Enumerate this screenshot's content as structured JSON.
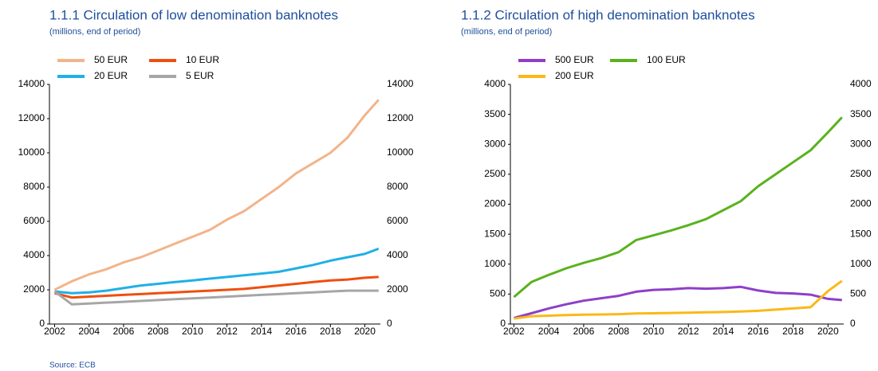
{
  "chart_data": [
    {
      "type": "line",
      "title": "1.1.1 Circulation of low denomination banknotes",
      "subtitle": "(millions, end of period)",
      "x": [
        2002,
        2003,
        2004,
        2005,
        2006,
        2007,
        2008,
        2009,
        2010,
        2011,
        2012,
        2013,
        2014,
        2015,
        2016,
        2017,
        2018,
        2019,
        2020,
        2020.8
      ],
      "xlim": [
        2001.7,
        2020.9
      ],
      "xticks": [
        2002,
        2004,
        2006,
        2008,
        2010,
        2012,
        2014,
        2016,
        2018,
        2020
      ],
      "ylim": [
        0,
        14000
      ],
      "yticks": [
        0,
        2000,
        4000,
        6000,
        8000,
        10000,
        12000,
        14000
      ],
      "y2lim": [
        0,
        14000
      ],
      "y2ticks": [
        0,
        2000,
        4000,
        6000,
        8000,
        10000,
        12000,
        14000
      ],
      "series": [
        {
          "name": "50 EUR",
          "color": "#f2b48a",
          "values": [
            2000,
            2500,
            2900,
            3200,
            3600,
            3900,
            4300,
            4700,
            5100,
            5500,
            6100,
            6600,
            7300,
            8000,
            8800,
            9400,
            10000,
            10900,
            12200,
            13100
          ]
        },
        {
          "name": "10 EUR",
          "color": "#f04e0f",
          "values": [
            1800,
            1550,
            1600,
            1650,
            1700,
            1750,
            1800,
            1850,
            1900,
            1950,
            2000,
            2050,
            2150,
            2250,
            2350,
            2450,
            2550,
            2600,
            2700,
            2750
          ]
        },
        {
          "name": "20 EUR",
          "color": "#1fb0e6",
          "values": [
            1900,
            1800,
            1850,
            1950,
            2100,
            2250,
            2350,
            2450,
            2550,
            2650,
            2750,
            2850,
            2950,
            3050,
            3250,
            3450,
            3700,
            3900,
            4100,
            4400
          ]
        },
        {
          "name": "5 EUR",
          "color": "#a6a6a6",
          "values": [
            1900,
            1150,
            1200,
            1250,
            1300,
            1350,
            1400,
            1450,
            1500,
            1550,
            1600,
            1650,
            1700,
            1750,
            1800,
            1850,
            1900,
            1950,
            1950,
            1950
          ]
        }
      ]
    },
    {
      "type": "line",
      "title": "1.1.2 Circulation of high denomination banknotes",
      "subtitle": "(millions, end of period)",
      "x": [
        2002,
        2003,
        2004,
        2005,
        2006,
        2007,
        2008,
        2009,
        2010,
        2011,
        2012,
        2013,
        2014,
        2015,
        2016,
        2017,
        2018,
        2019,
        2020,
        2020.8
      ],
      "xlim": [
        2001.8,
        2020.9
      ],
      "xticks": [
        2002,
        2004,
        2006,
        2008,
        2010,
        2012,
        2014,
        2016,
        2018,
        2020
      ],
      "ylim": [
        0,
        4000
      ],
      "yticks": [
        0,
        500,
        1000,
        1500,
        2000,
        2500,
        3000,
        3500,
        4000
      ],
      "y2lim": [
        0,
        4000
      ],
      "y2ticks": [
        0,
        500,
        1000,
        1500,
        2000,
        2500,
        3000,
        3500,
        4000
      ],
      "series": [
        {
          "name": "500 EUR",
          "color": "#8e3fc9",
          "values": [
            100,
            180,
            260,
            330,
            390,
            430,
            470,
            540,
            570,
            580,
            600,
            590,
            600,
            620,
            560,
            520,
            510,
            490,
            420,
            400
          ]
        },
        {
          "name": "100 EUR",
          "color": "#5ab21e",
          "values": [
            450,
            700,
            820,
            930,
            1020,
            1100,
            1200,
            1400,
            1480,
            1560,
            1650,
            1750,
            1900,
            2050,
            2300,
            2500,
            2700,
            2900,
            3200,
            3450
          ]
        },
        {
          "name": "200 EUR",
          "color": "#fbb818",
          "values": [
            90,
            130,
            140,
            150,
            155,
            160,
            165,
            175,
            180,
            185,
            190,
            195,
            200,
            210,
            220,
            240,
            260,
            280,
            550,
            720
          ]
        }
      ]
    }
  ],
  "source": "Source: ECB"
}
